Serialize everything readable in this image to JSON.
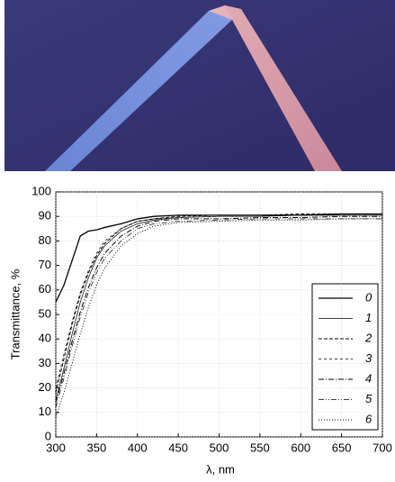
{
  "chart_data": {
    "type": "line",
    "x": [
      300,
      310,
      320,
      330,
      340,
      350,
      360,
      380,
      400,
      420,
      450,
      500,
      550,
      600,
      650,
      700
    ],
    "series": [
      {
        "name": "0",
        "color": "#000000",
        "dash": "",
        "width": 1.3,
        "values": [
          55,
          62,
          72,
          82,
          84,
          84.5,
          85.5,
          87,
          89,
          90,
          90.5,
          90.5,
          90.5,
          90.5,
          91,
          91
        ]
      },
      {
        "name": "1",
        "color": "#000000",
        "dash": "",
        "width": 0.7,
        "values": [
          15,
          28,
          42,
          55,
          65,
          73,
          78,
          84,
          87,
          88.5,
          89.5,
          90,
          90,
          90.5,
          90.5,
          90.5
        ]
      },
      {
        "name": "2",
        "color": "#000000",
        "dash": "4 2",
        "width": 1,
        "values": [
          18,
          32,
          46,
          58,
          67,
          74,
          79,
          85,
          88,
          89,
          90,
          90.5,
          90.5,
          91,
          91,
          91
        ]
      },
      {
        "name": "3",
        "color": "#000000",
        "dash": "3 3",
        "width": 0.7,
        "values": [
          20,
          34,
          47,
          59,
          68,
          75,
          80,
          85,
          88,
          89,
          89.5,
          90,
          90,
          90.5,
          90.5,
          90.5
        ]
      },
      {
        "name": "4",
        "color": "#000000",
        "dash": "6 2 1 2",
        "width": 1,
        "values": [
          14,
          26,
          39,
          51,
          61,
          69,
          75,
          82,
          86,
          88,
          89,
          89,
          89.5,
          89.5,
          90,
          90
        ]
      },
      {
        "name": "5",
        "color": "#000000",
        "dash": "6 2 1 2 1 2",
        "width": 0.7,
        "values": [
          12,
          24,
          37,
          49,
          59,
          67,
          73,
          80,
          85,
          87,
          88,
          88.5,
          89,
          89,
          89,
          89
        ]
      },
      {
        "name": "6",
        "color": "#000000",
        "dash": "1 2",
        "width": 1,
        "values": [
          8,
          18,
          30,
          42,
          53,
          62,
          69,
          78,
          83,
          86,
          87.5,
          88,
          88.5,
          88.5,
          89,
          89
        ]
      }
    ],
    "xlim": [
      300,
      700
    ],
    "xticks": [
      300,
      350,
      400,
      450,
      500,
      550,
      600,
      650,
      700
    ],
    "ylim": [
      0,
      100
    ],
    "yticks": [
      0,
      10,
      20,
      30,
      40,
      50,
      60,
      70,
      80,
      90,
      100
    ],
    "xlabel": "λ, nm",
    "ylabel": "Transmittance, %",
    "grid": true,
    "legend": "right"
  }
}
